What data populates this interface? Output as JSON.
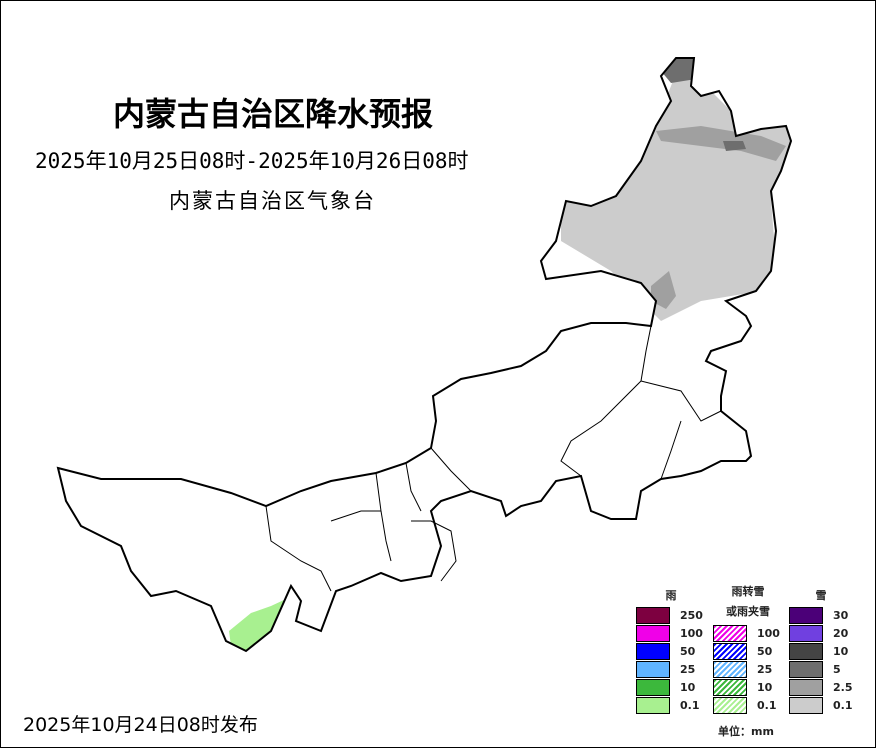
{
  "title": "内蒙古自治区降水预报",
  "period": "2025年10月25日08时-2025年10月26日08时",
  "issuer": "内蒙古自治区气象台",
  "issued": "2025年10月24日08时发布",
  "legend": {
    "rain": {
      "label": "雨",
      "items": [
        {
          "v": "250",
          "c": "#7d0040"
        },
        {
          "v": "100",
          "c": "#f000e8"
        },
        {
          "v": "50",
          "c": "#0000ff"
        },
        {
          "v": "25",
          "c": "#60b4ff"
        },
        {
          "v": "10",
          "c": "#3cb83c"
        },
        {
          "v": "0.1",
          "c": "#a8f090"
        }
      ]
    },
    "mix": {
      "label1": "雨转雪",
      "label2": "或雨夹雪",
      "items": [
        {
          "v": "100",
          "c": "#f000e8"
        },
        {
          "v": "50",
          "c": "#0000ff"
        },
        {
          "v": "25",
          "c": "#60b4ff"
        },
        {
          "v": "10",
          "c": "#3cb83c"
        },
        {
          "v": "0.1",
          "c": "#a8f090"
        }
      ]
    },
    "snow": {
      "label": "雪",
      "items": [
        {
          "v": "30",
          "c": "#4b0078"
        },
        {
          "v": "20",
          "c": "#7040e0"
        },
        {
          "v": "10",
          "c": "#444444"
        },
        {
          "v": "5",
          "c": "#6e6e6e"
        },
        {
          "v": "2.5",
          "c": "#a0a0a0"
        },
        {
          "v": "0.1",
          "c": "#cccccc"
        }
      ]
    },
    "unit": "单位：mm"
  }
}
